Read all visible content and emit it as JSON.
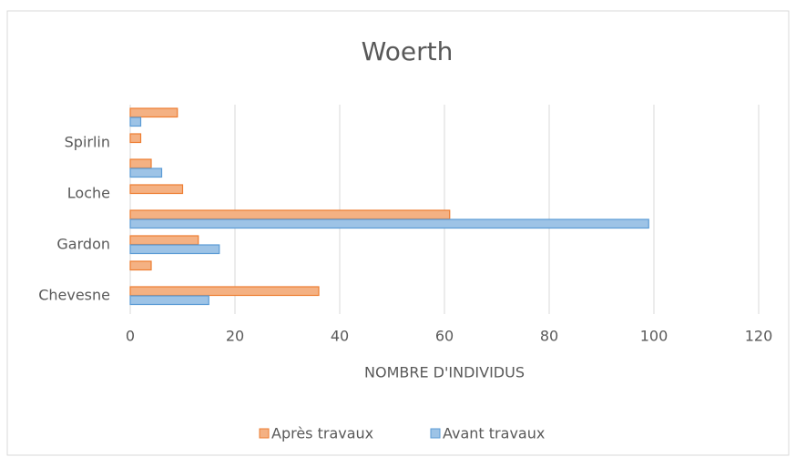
{
  "chart_data": {
    "type": "hbar",
    "title": "Woerth",
    "x_label": "NOMBRE D'INDIVIDUS",
    "categories": [
      "Chevesne",
      null,
      "Gardon",
      null,
      "Loche",
      null,
      "Spirlin",
      null
    ],
    "series": [
      {
        "name": "Après travaux",
        "color": "#ed7d31",
        "values": [
          36,
          4,
          13,
          61,
          10,
          4,
          2,
          9
        ]
      },
      {
        "name": "Avant travaux",
        "color": "#5b9bd5",
        "values": [
          15,
          0,
          17,
          99,
          0,
          6,
          0,
          2
        ]
      }
    ],
    "xlim": [
      0,
      120
    ],
    "xticks": [
      0,
      20,
      40,
      60,
      80,
      100,
      120
    ],
    "grid": true
  }
}
